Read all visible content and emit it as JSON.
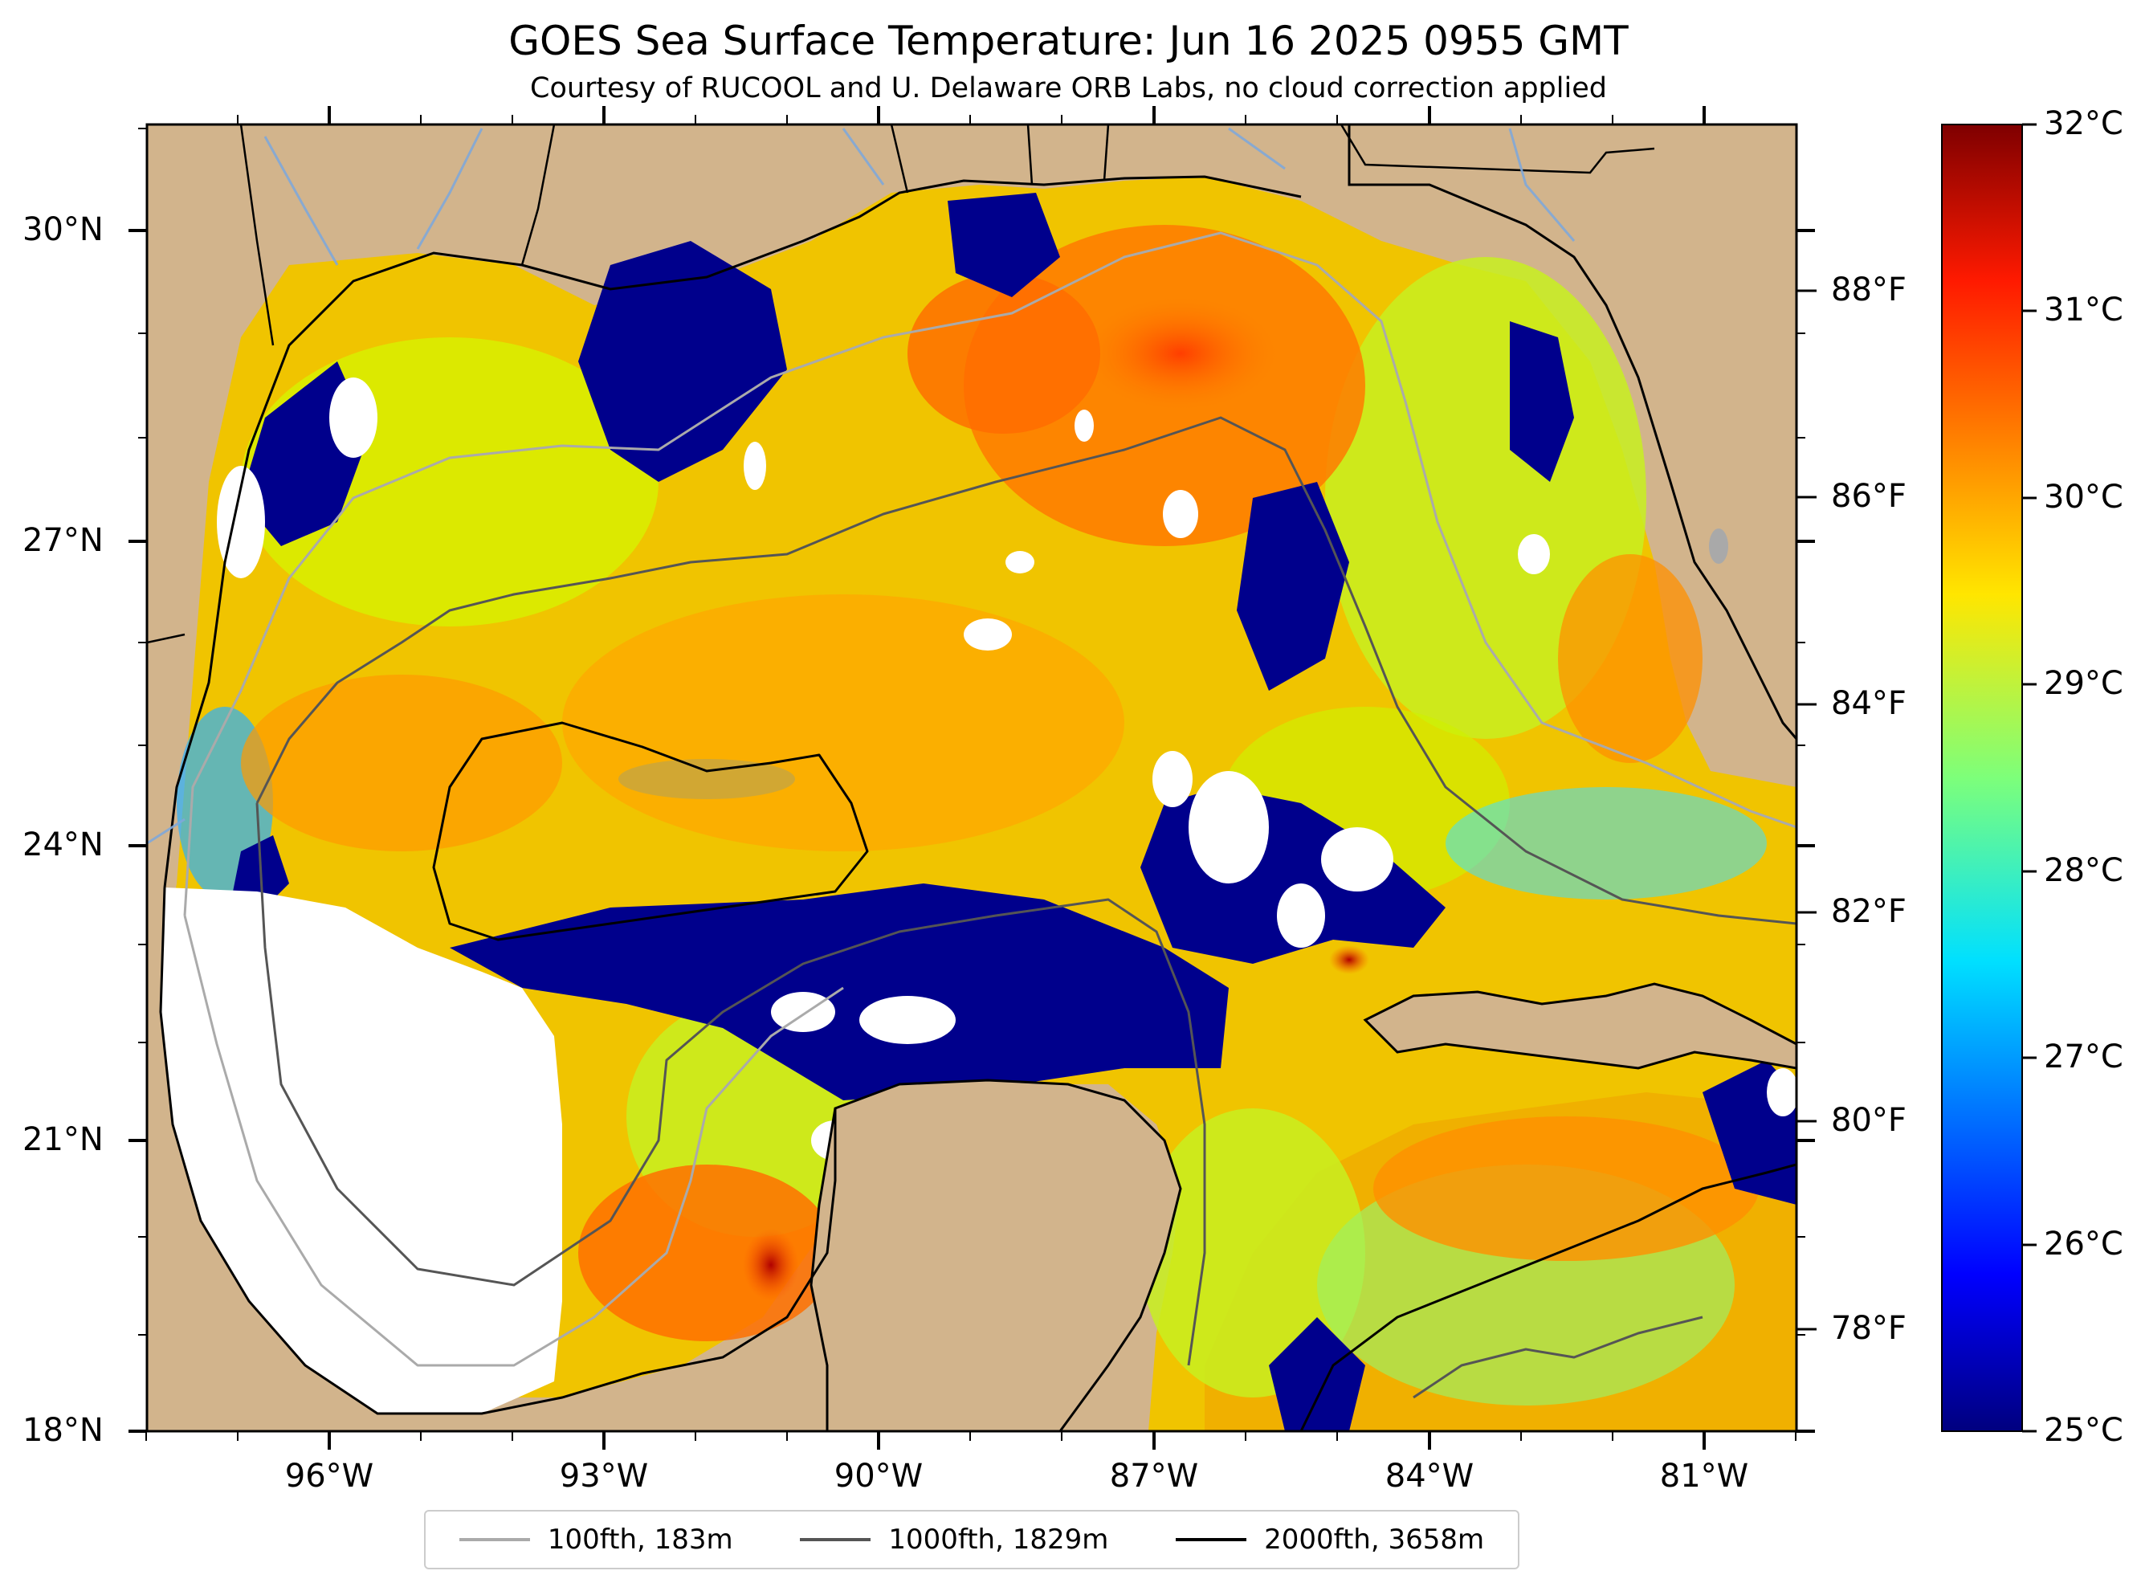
{
  "title": "GOES Sea Surface Temperature: Jun 16 2025 0955 GMT",
  "subtitle": "Courtesy of RUCOOL and U. Delaware ORB Labs, no cloud correction applied",
  "map": {
    "lon_range": [
      -98,
      -80
    ],
    "lat_range": [
      18,
      31
    ],
    "lat_ticks": [
      {
        "value": 18,
        "label": "18°N"
      },
      {
        "value": 21,
        "label": "21°N"
      },
      {
        "value": 24,
        "label": "24°N"
      },
      {
        "value": 27,
        "label": "27°N"
      },
      {
        "value": 30,
        "label": "30°N"
      }
    ],
    "lon_ticks": [
      {
        "value": -96,
        "label": "96°W"
      },
      {
        "value": -93,
        "label": "93°W"
      },
      {
        "value": -90,
        "label": "90°W"
      },
      {
        "value": -87,
        "label": "87°W"
      },
      {
        "value": -84,
        "label": "84°W"
      },
      {
        "value": -81,
        "label": "81°W"
      }
    ],
    "f_ticks": [
      {
        "value": 78,
        "label": "78°F"
      },
      {
        "value": 80,
        "label": "80°F"
      },
      {
        "value": 82,
        "label": "82°F"
      },
      {
        "value": 84,
        "label": "84°F"
      },
      {
        "value": 86,
        "label": "86°F"
      },
      {
        "value": 88,
        "label": "88°F"
      }
    ],
    "land_color": "#d2b48c",
    "cloud_color": "#ffffff"
  },
  "colorbar": {
    "range_c": [
      25,
      32
    ],
    "ticks": [
      {
        "value": 25,
        "label": "25°C"
      },
      {
        "value": 26,
        "label": "26°C"
      },
      {
        "value": 27,
        "label": "27°C"
      },
      {
        "value": 28,
        "label": "28°C"
      },
      {
        "value": 29,
        "label": "29°C"
      },
      {
        "value": 30,
        "label": "30°C"
      },
      {
        "value": 31,
        "label": "31°C"
      },
      {
        "value": 32,
        "label": "32°C"
      }
    ],
    "colormap": "jet"
  },
  "legend": [
    {
      "label": "100fth, 183m",
      "color": "#aaaaaa"
    },
    {
      "label": "1000fth, 1829m",
      "color": "#555555"
    },
    {
      "label": "2000fth, 3658m",
      "color": "#000000"
    }
  ]
}
